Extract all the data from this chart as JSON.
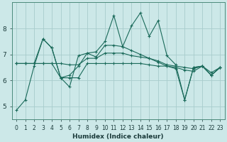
{
  "xlabel": "Humidex (Indice chaleur)",
  "ylabel": "",
  "bg_color": "#cce8e8",
  "grid_color": "#a8cccc",
  "line_color": "#1a6a5a",
  "xlim": [
    -0.5,
    23.5
  ],
  "ylim": [
    4.5,
    9.0
  ],
  "xticks": [
    0,
    1,
    2,
    3,
    4,
    5,
    6,
    7,
    8,
    9,
    10,
    11,
    12,
    13,
    14,
    15,
    16,
    17,
    18,
    19,
    20,
    21,
    22,
    23
  ],
  "yticks": [
    5,
    6,
    7,
    8
  ],
  "series": [
    [
      4.85,
      5.25,
      6.55,
      7.6,
      7.25,
      6.1,
      5.75,
      6.95,
      7.05,
      7.1,
      7.5,
      8.5,
      7.3,
      8.1,
      8.6,
      7.7,
      8.3,
      6.95,
      6.6,
      5.25,
      6.5,
      6.55,
      6.2,
      6.5
    ],
    [
      6.65,
      6.65,
      6.65,
      7.6,
      7.25,
      6.1,
      6.2,
      6.55,
      7.05,
      6.9,
      7.35,
      7.35,
      7.3,
      7.15,
      7.0,
      6.85,
      6.7,
      6.55,
      6.5,
      6.4,
      6.35,
      6.55,
      6.2,
      6.5
    ],
    [
      6.65,
      6.65,
      6.65,
      6.65,
      6.65,
      6.65,
      6.6,
      6.6,
      6.85,
      6.85,
      7.05,
      7.05,
      7.05,
      6.95,
      6.9,
      6.85,
      6.75,
      6.6,
      6.55,
      6.5,
      6.45,
      6.55,
      6.3,
      6.5
    ],
    [
      6.65,
      6.65,
      6.65,
      6.65,
      6.65,
      6.1,
      6.1,
      6.1,
      6.65,
      6.65,
      6.65,
      6.65,
      6.65,
      6.65,
      6.65,
      6.6,
      6.55,
      6.55,
      6.45,
      5.25,
      6.5,
      6.55,
      6.2,
      6.5
    ]
  ]
}
